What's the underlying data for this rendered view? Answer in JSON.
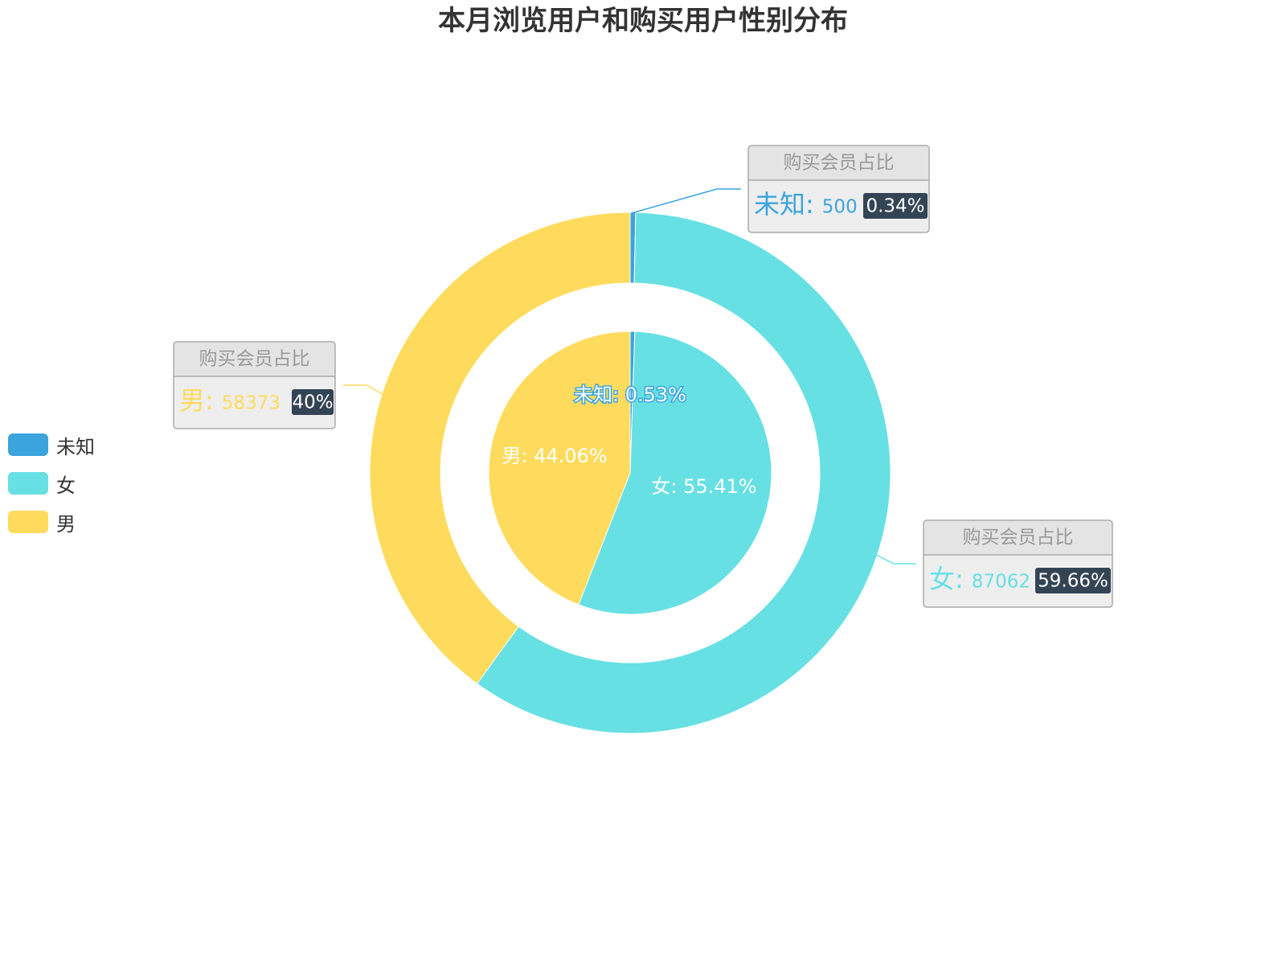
{
  "chart_data": {
    "type": "pie",
    "title": "本月浏览用户和购买用户性别分布",
    "legend": {
      "placement": "left",
      "items": [
        {
          "name": "未知",
          "color": "#3ba4dc"
        },
        {
          "name": "女",
          "color": "#67e0e3"
        },
        {
          "name": "男",
          "color": "#fedb5c"
        }
      ]
    },
    "inner_pie": {
      "slices": [
        {
          "name": "未知",
          "percent": 0.53,
          "label": "未知: 0.53%",
          "color": "#3ba4dc"
        },
        {
          "name": "女",
          "percent": 55.41,
          "label": "女: 55.41%",
          "color": "#67e0e3"
        },
        {
          "name": "男",
          "percent": 44.06,
          "label": "男: 44.06%",
          "color": "#fedb5c"
        }
      ]
    },
    "outer_ring": {
      "tooltip_header": "购买会员占比",
      "slices": [
        {
          "name": "未知",
          "value": 500,
          "percent_label": "0.34%",
          "color": "#3ba4dc"
        },
        {
          "name": "女",
          "value": 87062,
          "percent_label": "59.66%",
          "color": "#67e0e3"
        },
        {
          "name": "男",
          "value": 58373,
          "percent_label": "40%",
          "color": "#fedb5c"
        }
      ]
    }
  }
}
